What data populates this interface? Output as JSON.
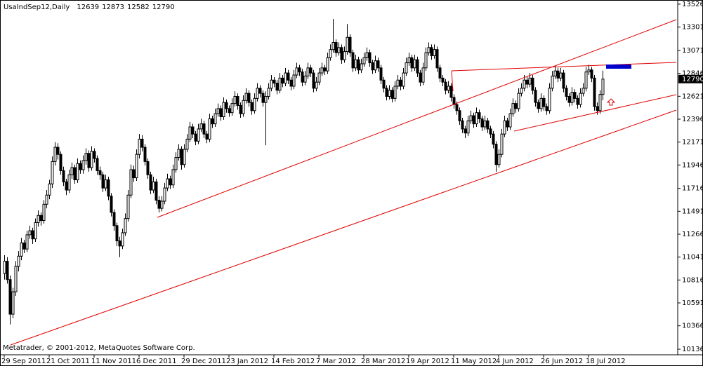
{
  "chart_data": {
    "type": "candlestick",
    "title": "UsaIndSep12,Daily",
    "footer": "Metatrader, © 2001-2012, MetaQuotes Software Corp.",
    "ylim": [
      10088,
      13567
    ],
    "yticks": [
      13526,
      13301,
      13071,
      12846,
      12621,
      12396,
      12171,
      11946,
      11716,
      11491,
      11266,
      11041,
      10816,
      10591,
      10366,
      10136
    ],
    "categories": [
      "29 Sep 2011",
      null,
      null,
      null,
      null,
      null,
      null,
      null,
      null,
      null,
      null,
      null,
      null,
      null,
      null,
      null,
      "21 Oct 2011",
      null,
      null,
      null,
      null,
      null,
      null,
      null,
      null,
      null,
      null,
      null,
      null,
      null,
      null,
      null,
      "11 Nov 2011",
      null,
      null,
      null,
      null,
      null,
      null,
      null,
      null,
      null,
      null,
      null,
      null,
      null,
      null,
      null,
      "6 Dec 2011",
      null,
      null,
      null,
      null,
      null,
      null,
      null,
      null,
      null,
      null,
      null,
      null,
      null,
      null,
      null,
      "29 Dec 2011",
      null,
      null,
      null,
      null,
      null,
      null,
      null,
      null,
      null,
      null,
      null,
      null,
      null,
      null,
      null,
      "23 Jan 2012",
      null,
      null,
      null,
      null,
      null,
      null,
      null,
      null,
      null,
      null,
      null,
      null,
      null,
      null,
      null,
      "14 Feb 2012",
      null,
      null,
      null,
      null,
      null,
      null,
      null,
      null,
      null,
      null,
      null,
      null,
      null,
      null,
      null,
      "7 Mar 2012",
      null,
      null,
      null,
      null,
      null,
      null,
      null,
      null,
      null,
      null,
      null,
      null,
      null,
      null,
      null,
      "28 Mar 2012",
      null,
      null,
      null,
      null,
      null,
      null,
      null,
      null,
      null,
      null,
      null,
      null,
      null,
      null,
      null,
      "19 Apr 2012",
      null,
      null,
      null,
      null,
      null,
      null,
      null,
      null,
      null,
      null,
      null,
      null,
      null,
      null,
      null,
      "11 May 2012",
      null,
      null,
      null,
      null,
      null,
      null,
      null,
      null,
      null,
      null,
      null,
      null,
      null,
      null,
      null,
      "4 Jun 2012",
      null,
      null,
      null,
      null,
      null,
      null,
      null,
      null,
      null,
      null,
      null,
      null,
      null,
      null,
      null,
      "26 Jun 2012",
      null,
      null,
      null,
      null,
      null,
      null,
      null,
      null,
      null,
      null,
      null,
      null,
      null,
      null,
      null,
      "18 Jul 2012",
      null,
      null,
      null,
      null,
      null
    ],
    "values": [
      [
        10880,
        11060,
        10820,
        11000
      ],
      [
        11000,
        11040,
        10780,
        10820
      ],
      [
        10820,
        10860,
        10380,
        10480
      ],
      [
        10480,
        10740,
        10440,
        10700
      ],
      [
        10700,
        11000,
        10660,
        10950
      ],
      [
        10950,
        11100,
        10900,
        11050
      ],
      [
        11050,
        11230,
        11010,
        11180
      ],
      [
        11180,
        11210,
        11080,
        11120
      ],
      [
        11120,
        11300,
        11090,
        11260
      ],
      [
        11260,
        11350,
        11220,
        11300
      ],
      [
        11300,
        11330,
        11170,
        11220
      ],
      [
        11220,
        11420,
        11190,
        11380
      ],
      [
        11380,
        11500,
        11340,
        11450
      ],
      [
        11450,
        11480,
        11350,
        11400
      ],
      [
        11400,
        11600,
        11370,
        11560
      ],
      [
        11560,
        11700,
        11520,
        11650
      ],
      [
        11650,
        11800,
        11610,
        11760
      ],
      [
        11760,
        12030,
        11720,
        11980
      ],
      [
        11980,
        12170,
        11940,
        12120
      ],
      [
        12120,
        12160,
        12000,
        12050
      ],
      [
        12050,
        12080,
        11850,
        11890
      ],
      [
        11890,
        11930,
        11740,
        11780
      ],
      [
        11780,
        11810,
        11650,
        11700
      ],
      [
        11700,
        11900,
        11670,
        11850
      ],
      [
        11850,
        11970,
        11810,
        11920
      ],
      [
        11920,
        11950,
        11760,
        11800
      ],
      [
        11800,
        12010,
        11770,
        11960
      ],
      [
        11960,
        11990,
        11860,
        11900
      ],
      [
        11900,
        12040,
        11860,
        11990
      ],
      [
        11990,
        12110,
        11950,
        12060
      ],
      [
        12060,
        12090,
        11880,
        11920
      ],
      [
        11920,
        12130,
        11890,
        12080
      ],
      [
        12080,
        12110,
        11970,
        12010
      ],
      [
        12010,
        12040,
        11850,
        11890
      ],
      [
        11890,
        11930,
        11800,
        11850
      ],
      [
        11850,
        11880,
        11680,
        11720
      ],
      [
        11720,
        11850,
        11690,
        11800
      ],
      [
        11800,
        11830,
        11600,
        11640
      ],
      [
        11640,
        11670,
        11440,
        11480
      ],
      [
        11480,
        11510,
        11300,
        11350
      ],
      [
        11350,
        11380,
        11150,
        11200
      ],
      [
        11200,
        11240,
        11040,
        11150
      ],
      [
        11150,
        11320,
        11120,
        11280
      ],
      [
        11280,
        11470,
        11250,
        11420
      ],
      [
        11420,
        11700,
        11390,
        11650
      ],
      [
        11650,
        11950,
        11620,
        11900
      ],
      [
        11900,
        11940,
        11780,
        11820
      ],
      [
        11820,
        12100,
        11790,
        12050
      ],
      [
        12050,
        12250,
        12010,
        12200
      ],
      [
        12200,
        12240,
        12080,
        12120
      ],
      [
        12120,
        12150,
        11940,
        11980
      ],
      [
        11980,
        12010,
        11810,
        11850
      ],
      [
        11850,
        11880,
        11660,
        11700
      ],
      [
        11700,
        11830,
        11670,
        11780
      ],
      [
        11780,
        11810,
        11560,
        11600
      ],
      [
        11600,
        11640,
        11480,
        11520
      ],
      [
        11520,
        11640,
        11490,
        11590
      ],
      [
        11590,
        11770,
        11560,
        11720
      ],
      [
        11720,
        11860,
        11690,
        11810
      ],
      [
        11810,
        11840,
        11710,
        11750
      ],
      [
        11750,
        11950,
        11720,
        11900
      ],
      [
        11900,
        12070,
        11870,
        12020
      ],
      [
        12020,
        12150,
        11990,
        12100
      ],
      [
        12100,
        12130,
        11900,
        11950
      ],
      [
        11950,
        12150,
        11920,
        12100
      ],
      [
        12100,
        12250,
        12070,
        12200
      ],
      [
        12200,
        12370,
        12170,
        12320
      ],
      [
        12320,
        12350,
        12210,
        12250
      ],
      [
        12250,
        12280,
        12140,
        12180
      ],
      [
        12180,
        12350,
        12150,
        12300
      ],
      [
        12300,
        12400,
        12270,
        12350
      ],
      [
        12350,
        12380,
        12210,
        12250
      ],
      [
        12250,
        12280,
        12160,
        12200
      ],
      [
        12200,
        12450,
        12170,
        12400
      ],
      [
        12400,
        12430,
        12310,
        12350
      ],
      [
        12350,
        12500,
        12320,
        12450
      ],
      [
        12450,
        12550,
        12420,
        12500
      ],
      [
        12500,
        12530,
        12380,
        12420
      ],
      [
        12420,
        12610,
        12390,
        12560
      ],
      [
        12560,
        12590,
        12460,
        12500
      ],
      [
        12500,
        12530,
        12420,
        12460
      ],
      [
        12460,
        12600,
        12430,
        12550
      ],
      [
        12550,
        12670,
        12520,
        12620
      ],
      [
        12620,
        12650,
        12490,
        12530
      ],
      [
        12530,
        12560,
        12410,
        12450
      ],
      [
        12450,
        12630,
        12420,
        12580
      ],
      [
        12580,
        12700,
        12550,
        12650
      ],
      [
        12650,
        12680,
        12520,
        12560
      ],
      [
        12560,
        12590,
        12440,
        12480
      ],
      [
        12480,
        12650,
        12450,
        12600
      ],
      [
        12600,
        12750,
        12570,
        12700
      ],
      [
        12700,
        12730,
        12610,
        12650
      ],
      [
        12650,
        12680,
        12520,
        12560
      ],
      [
        12560,
        12670,
        12140,
        12620
      ],
      [
        12620,
        12750,
        12590,
        12700
      ],
      [
        12700,
        12830,
        12670,
        12780
      ],
      [
        12780,
        12810,
        12710,
        12750
      ],
      [
        12750,
        12780,
        12640,
        12680
      ],
      [
        12680,
        12850,
        12650,
        12800
      ],
      [
        12800,
        12830,
        12710,
        12750
      ],
      [
        12750,
        12900,
        12720,
        12850
      ],
      [
        12850,
        12880,
        12740,
        12780
      ],
      [
        12780,
        12810,
        12680,
        12720
      ],
      [
        12720,
        12880,
        12690,
        12830
      ],
      [
        12830,
        12950,
        12800,
        12900
      ],
      [
        12900,
        12930,
        12820,
        12860
      ],
      [
        12860,
        12890,
        12720,
        12760
      ],
      [
        12760,
        12870,
        12730,
        12820
      ],
      [
        12820,
        12950,
        12790,
        12900
      ],
      [
        12900,
        12930,
        12810,
        12850
      ],
      [
        12850,
        12880,
        12660,
        12700
      ],
      [
        12700,
        12810,
        12670,
        12760
      ],
      [
        12760,
        12900,
        12730,
        12850
      ],
      [
        12850,
        12950,
        12820,
        12900
      ],
      [
        12900,
        12930,
        12830,
        12870
      ],
      [
        12870,
        13050,
        12840,
        13000
      ],
      [
        13000,
        13130,
        12970,
        13080
      ],
      [
        13080,
        13380,
        13050,
        13150
      ],
      [
        13150,
        13180,
        13010,
        13050
      ],
      [
        13050,
        13150,
        13020,
        13100
      ],
      [
        13100,
        13130,
        12940,
        12980
      ],
      [
        12980,
        13110,
        12950,
        13060
      ],
      [
        13060,
        13330,
        13030,
        13200
      ],
      [
        13200,
        13230,
        13010,
        13050
      ],
      [
        13050,
        13080,
        12860,
        12900
      ],
      [
        12900,
        13030,
        12870,
        12980
      ],
      [
        12980,
        13010,
        12840,
        12880
      ],
      [
        12880,
        12990,
        12850,
        12940
      ],
      [
        12940,
        13050,
        12910,
        13000
      ],
      [
        13000,
        13100,
        12970,
        13050
      ],
      [
        13050,
        13080,
        12910,
        12950
      ],
      [
        12950,
        12980,
        12840,
        12880
      ],
      [
        12880,
        13020,
        12850,
        12970
      ],
      [
        12970,
        13000,
        12860,
        12900
      ],
      [
        12900,
        12930,
        12740,
        12780
      ],
      [
        12780,
        12810,
        12660,
        12700
      ],
      [
        12700,
        12730,
        12580,
        12620
      ],
      [
        12620,
        12730,
        12590,
        12680
      ],
      [
        12680,
        12710,
        12560,
        12600
      ],
      [
        12600,
        12770,
        12570,
        12720
      ],
      [
        12720,
        12830,
        12690,
        12780
      ],
      [
        12780,
        12810,
        12680,
        12720
      ],
      [
        12720,
        12900,
        12690,
        12850
      ],
      [
        12850,
        13000,
        12820,
        12950
      ],
      [
        12950,
        13050,
        12920,
        13000
      ],
      [
        13000,
        13030,
        12860,
        12900
      ],
      [
        12900,
        13030,
        12870,
        12980
      ],
      [
        12980,
        13010,
        12810,
        12850
      ],
      [
        12850,
        12880,
        12720,
        12760
      ],
      [
        12760,
        12950,
        12730,
        12900
      ],
      [
        12900,
        13100,
        12870,
        13050
      ],
      [
        13050,
        13150,
        13020,
        13100
      ],
      [
        13100,
        13130,
        12980,
        13020
      ],
      [
        13020,
        13130,
        12990,
        13080
      ],
      [
        13080,
        13110,
        12860,
        12900
      ],
      [
        12900,
        12930,
        12760,
        12800
      ],
      [
        12800,
        12830,
        12720,
        12760
      ],
      [
        12760,
        12790,
        12640,
        12680
      ],
      [
        12680,
        12770,
        12650,
        12720
      ],
      [
        12720,
        12750,
        12570,
        12610
      ],
      [
        12610,
        12640,
        12500,
        12540
      ],
      [
        12540,
        12570,
        12440,
        12480
      ],
      [
        12480,
        12510,
        12340,
        12380
      ],
      [
        12380,
        12410,
        12260,
        12300
      ],
      [
        12300,
        12330,
        12210,
        12260
      ],
      [
        12260,
        12430,
        12230,
        12380
      ],
      [
        12380,
        12480,
        12350,
        12430
      ],
      [
        12430,
        12460,
        12310,
        12350
      ],
      [
        12350,
        12510,
        12320,
        12460
      ],
      [
        12460,
        12490,
        12360,
        12400
      ],
      [
        12400,
        12430,
        12280,
        12320
      ],
      [
        12320,
        12430,
        12290,
        12380
      ],
      [
        12380,
        12410,
        12260,
        12300
      ],
      [
        12300,
        12330,
        12210,
        12250
      ],
      [
        12250,
        12280,
        12110,
        12150
      ],
      [
        12150,
        12180,
        11880,
        11950
      ],
      [
        11950,
        12100,
        11920,
        12050
      ],
      [
        12050,
        12300,
        12020,
        12250
      ],
      [
        12250,
        12430,
        12220,
        12380
      ],
      [
        12380,
        12410,
        12280,
        12320
      ],
      [
        12320,
        12500,
        12290,
        12450
      ],
      [
        12450,
        12600,
        12420,
        12550
      ],
      [
        12550,
        12580,
        12460,
        12500
      ],
      [
        12500,
        12700,
        12470,
        12650
      ],
      [
        12650,
        12750,
        12620,
        12700
      ],
      [
        12700,
        12830,
        12670,
        12780
      ],
      [
        12780,
        12810,
        12700,
        12740
      ],
      [
        12740,
        12850,
        12710,
        12800
      ],
      [
        12800,
        12830,
        12640,
        12680
      ],
      [
        12680,
        12710,
        12520,
        12560
      ],
      [
        12560,
        12590,
        12460,
        12500
      ],
      [
        12500,
        12650,
        12470,
        12600
      ],
      [
        12600,
        12630,
        12480,
        12520
      ],
      [
        12520,
        12550,
        12440,
        12480
      ],
      [
        12480,
        12750,
        12450,
        12700
      ],
      [
        12700,
        12870,
        12670,
        12820
      ],
      [
        12820,
        12920,
        12790,
        12870
      ],
      [
        12870,
        12900,
        12760,
        12800
      ],
      [
        12800,
        12900,
        12770,
        12850
      ],
      [
        12850,
        12880,
        12660,
        12700
      ],
      [
        12700,
        12730,
        12580,
        12620
      ],
      [
        12620,
        12650,
        12520,
        12560
      ],
      [
        12560,
        12710,
        12530,
        12660
      ],
      [
        12660,
        12690,
        12560,
        12600
      ],
      [
        12600,
        12630,
        12500,
        12540
      ],
      [
        12540,
        12700,
        12510,
        12650
      ],
      [
        12650,
        12750,
        12620,
        12700
      ],
      [
        12700,
        12910,
        12670,
        12860
      ],
      [
        12860,
        12930,
        12830,
        12880
      ],
      [
        12880,
        12910,
        12760,
        12800
      ],
      [
        12800,
        12830,
        12480,
        12520
      ],
      [
        12520,
        12560,
        12440,
        12480
      ],
      [
        12480,
        12680,
        12450,
        12639
      ],
      [
        12639,
        12873,
        12582,
        12790
      ]
    ]
  }
}
